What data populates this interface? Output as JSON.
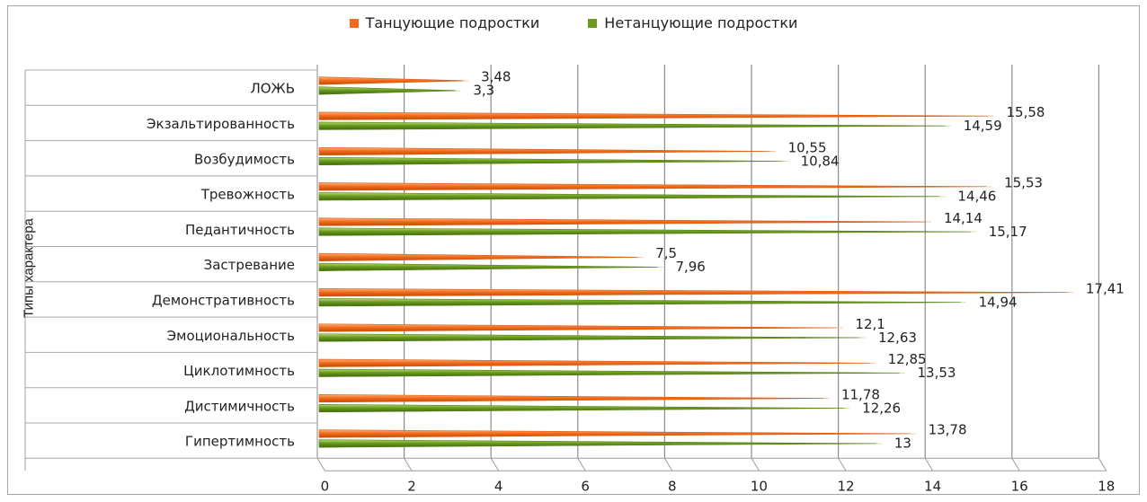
{
  "chart_data": {
    "type": "bar",
    "orientation": "horizontal",
    "ylabel": "Типы характера",
    "xlim": [
      0,
      18
    ],
    "xticks": [
      0,
      2,
      4,
      6,
      8,
      10,
      12,
      14,
      16,
      18
    ],
    "grid": true,
    "legend_position": "top",
    "categories": [
      "ЛОЖЬ",
      "Экзальтированность",
      "Возбудимость",
      "Тревожность",
      "Педантичность",
      "Застревание",
      "Демонстративность",
      "Эмоциональность",
      "Циклотимность",
      "Дистимичность",
      "Гипертимность"
    ],
    "series": [
      {
        "name": "Танцующие подростки",
        "color": "#f26b1d",
        "values": [
          3.48,
          15.58,
          10.55,
          15.53,
          14.14,
          7.5,
          17.41,
          12.1,
          12.85,
          11.78,
          13.78
        ],
        "labels": [
          "3,48",
          "15,58",
          "10,55",
          "15,53",
          "14,14",
          "7,5",
          "17,41",
          "12,1",
          "12,85",
          "11,78",
          "13,78"
        ]
      },
      {
        "name": "Нетанцующие подростки",
        "color": "#6a9a1f",
        "values": [
          3.3,
          14.59,
          10.84,
          14.46,
          15.17,
          7.96,
          14.94,
          12.63,
          13.53,
          12.26,
          13
        ],
        "labels": [
          "3,3",
          "14,59",
          "10,84",
          "14,46",
          "15,17",
          "7,96",
          "14,94",
          "12,63",
          "13,53",
          "12,26",
          "13"
        ]
      }
    ]
  }
}
